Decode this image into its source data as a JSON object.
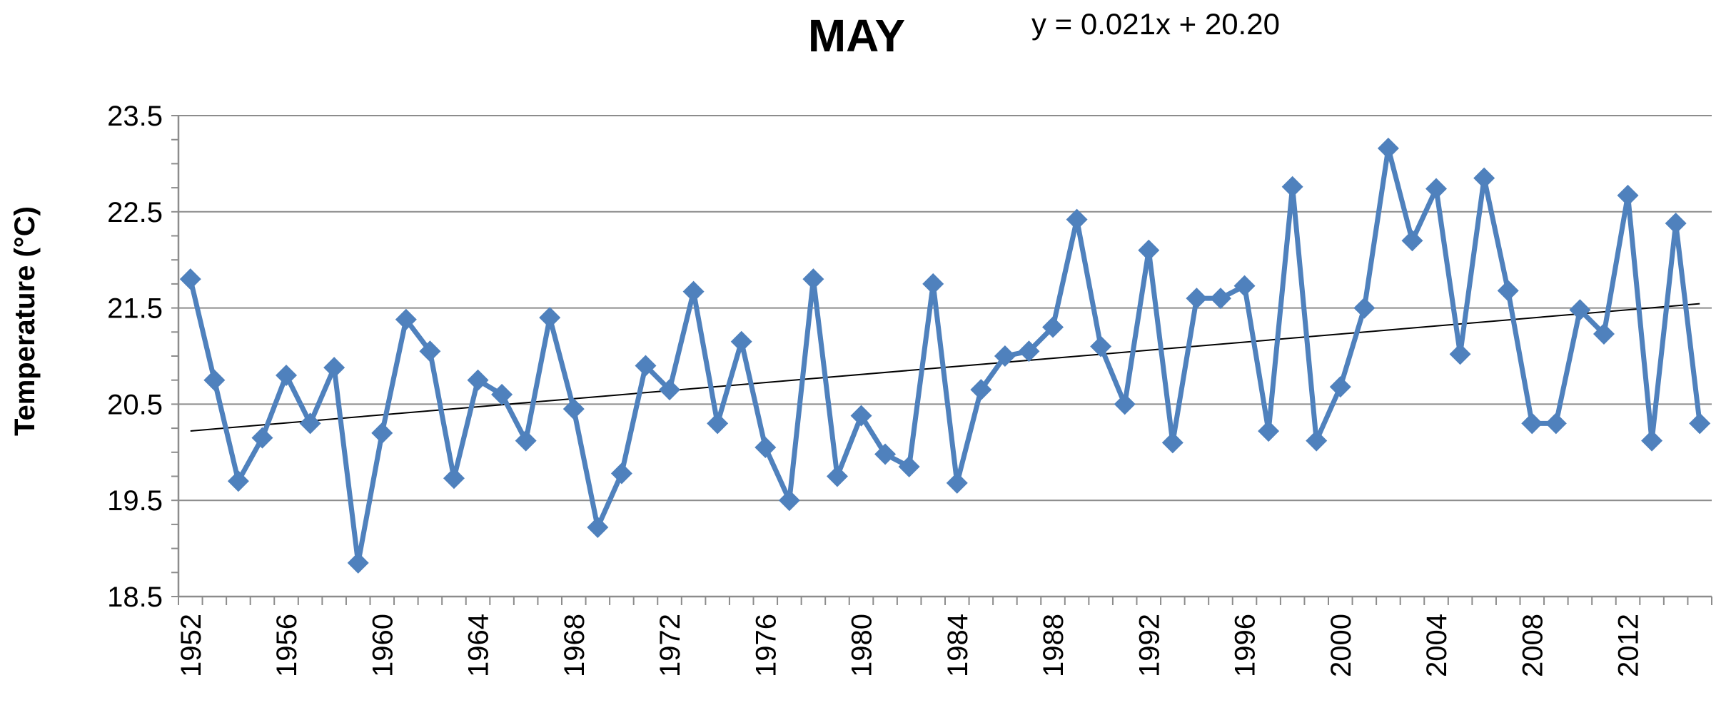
{
  "chart_data": {
    "type": "line",
    "title": "MAY",
    "equation": "y = 0.021x + 20.20",
    "ylabel": "Temperature (°C)",
    "xlabel": "",
    "ylim": [
      18.5,
      23.5
    ],
    "ytick_labels": [
      "18.5",
      "19.5",
      "20.5",
      "21.5",
      "22.5",
      "23.5"
    ],
    "xtick_labels": [
      "1952",
      "1956",
      "1960",
      "1964",
      "1968",
      "1972",
      "1976",
      "1980",
      "1984",
      "1988",
      "1992",
      "1996",
      "2000",
      "2004",
      "2008",
      "2012"
    ],
    "grid": "horizontal",
    "series_color": "#4F81BD",
    "trend_color": "#000000",
    "x": [
      1952,
      1953,
      1954,
      1955,
      1956,
      1957,
      1958,
      1959,
      1960,
      1961,
      1962,
      1963,
      1964,
      1965,
      1966,
      1967,
      1968,
      1969,
      1970,
      1971,
      1972,
      1973,
      1974,
      1975,
      1976,
      1977,
      1978,
      1979,
      1980,
      1981,
      1982,
      1983,
      1984,
      1985,
      1986,
      1987,
      1988,
      1989,
      1990,
      1991,
      1992,
      1993,
      1994,
      1995,
      1996,
      1997,
      1998,
      1999,
      2000,
      2001,
      2002,
      2003,
      2004,
      2005,
      2006,
      2007,
      2008,
      2009,
      2010,
      2011,
      2012,
      2013,
      2014,
      2015
    ],
    "series": [
      {
        "values": [
          21.8,
          20.75,
          19.7,
          20.15,
          20.8,
          20.3,
          20.88,
          18.85,
          20.2,
          21.38,
          21.05,
          19.73,
          20.75,
          20.6,
          20.12,
          21.4,
          20.45,
          19.22,
          19.78,
          20.9,
          20.65,
          21.67,
          20.3,
          21.15,
          20.05,
          19.5,
          21.8,
          19.75,
          20.38,
          19.98,
          19.85,
          21.75,
          19.68,
          20.65,
          21.0,
          21.05,
          21.3,
          22.42,
          21.1,
          20.5,
          22.1,
          20.1,
          21.6,
          21.6,
          21.73,
          20.22,
          22.76,
          20.12,
          20.68,
          21.5,
          23.16,
          22.2,
          22.74,
          21.02,
          22.85,
          21.68,
          20.3,
          20.3,
          21.48,
          21.23,
          22.67,
          20.12,
          22.38,
          20.3
        ]
      }
    ],
    "trendline": {
      "slope": 0.021,
      "intercept": 20.2
    }
  }
}
